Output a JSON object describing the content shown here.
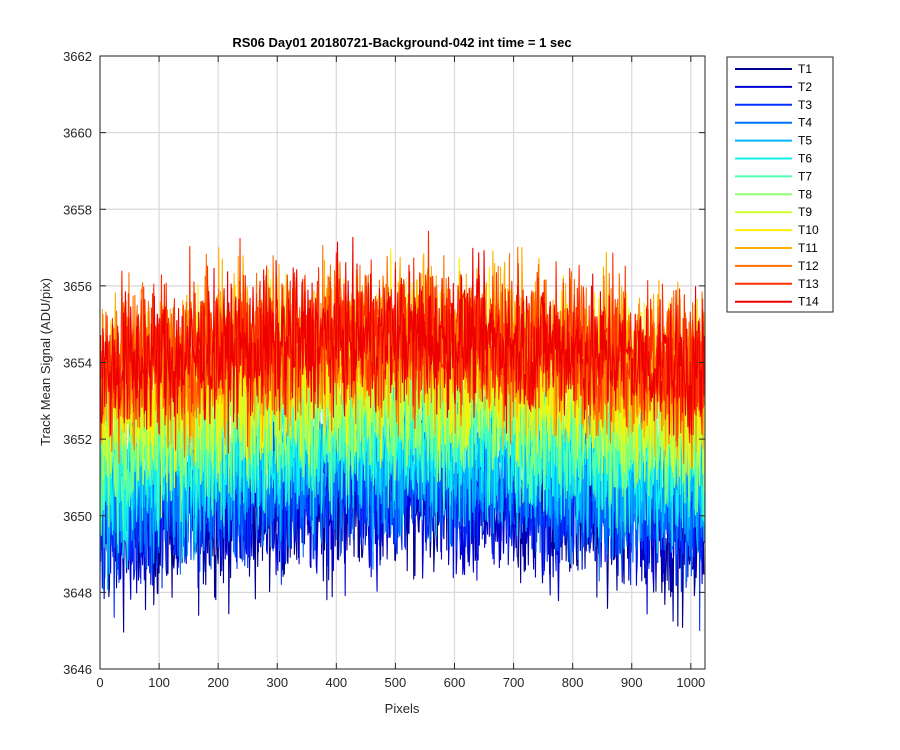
{
  "chart_data": {
    "type": "line",
    "title": "RS06 Day01 20180721-Background-042 int time = 1 sec",
    "xlabel": "Pixels",
    "ylabel": "Track Mean Signal (ADU/pix)",
    "xlim": [
      0,
      1024
    ],
    "ylim": [
      3646,
      3662
    ],
    "xticks": [
      0,
      100,
      200,
      300,
      400,
      500,
      600,
      700,
      800,
      900,
      1000
    ],
    "yticks": [
      3646,
      3648,
      3650,
      3652,
      3654,
      3656,
      3658,
      3660,
      3662
    ],
    "grid": true,
    "legend_position": "outside-top-right",
    "series": [
      {
        "name": "T1",
        "color": "#00008f",
        "mean": 3649.9,
        "noise": 1.0
      },
      {
        "name": "T2",
        "color": "#0000d6",
        "mean": 3650.1,
        "noise": 1.0
      },
      {
        "name": "T3",
        "color": "#0030ff",
        "mean": 3650.4,
        "noise": 1.0
      },
      {
        "name": "T4",
        "color": "#0070ff",
        "mean": 3650.8,
        "noise": 1.0
      },
      {
        "name": "T5",
        "color": "#00b4ff",
        "mean": 3651.2,
        "noise": 1.0
      },
      {
        "name": "T6",
        "color": "#10f0ef",
        "mean": 3651.6,
        "noise": 1.0
      },
      {
        "name": "T7",
        "color": "#50ffaf",
        "mean": 3652.1,
        "noise": 1.0
      },
      {
        "name": "T8",
        "color": "#8fff70",
        "mean": 3652.6,
        "noise": 1.0
      },
      {
        "name": "T9",
        "color": "#cfff30",
        "mean": 3653.1,
        "noise": 1.0
      },
      {
        "name": "T10",
        "color": "#ffef00",
        "mean": 3653.7,
        "noise": 1.05
      },
      {
        "name": "T11",
        "color": "#ffb000",
        "mean": 3654.1,
        "noise": 1.05
      },
      {
        "name": "T12",
        "color": "#ff7000",
        "mean": 3654.2,
        "noise": 1.05
      },
      {
        "name": "T13",
        "color": "#ff3000",
        "mean": 3654.3,
        "noise": 1.0
      },
      {
        "name": "T14",
        "color": "#ee0000",
        "mean": 3654.2,
        "noise": 0.9
      }
    ]
  }
}
